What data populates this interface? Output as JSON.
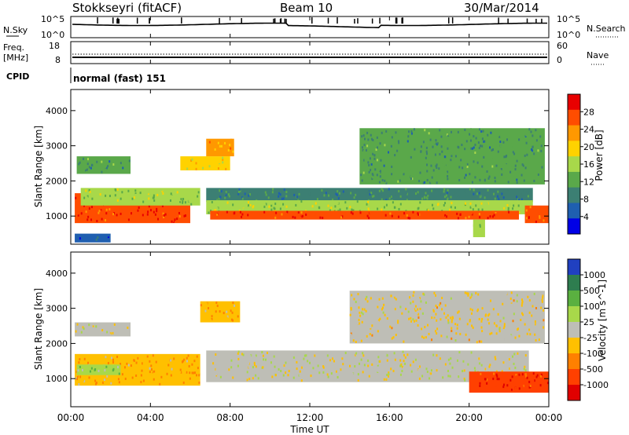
{
  "header": {
    "station": "Stokkseyri (fitACF)",
    "beam": "Beam 10",
    "date": "30/Mar/2014"
  },
  "noise_panel": {
    "left_label": "N.Sky",
    "right_label": "N.Search",
    "left_ticks": [
      "10^5",
      "10^0"
    ],
    "right_ticks": [
      "10^5",
      "10^0"
    ]
  },
  "freq_panel": {
    "left_label_line1": "Freq.",
    "left_label_line2": "[MHz]",
    "left_ticks": [
      "18",
      "8"
    ],
    "right_label": "Nave",
    "right_ticks": [
      "60",
      "0"
    ],
    "cpid_label": "CPID",
    "cpid_value": "normal (fast) 151"
  },
  "chart_data": [
    {
      "type": "heatmap",
      "parameter": "Power",
      "ylabel": "Slant Range [km]",
      "xlabel": "",
      "xlim": [
        0,
        24
      ],
      "ylim": [
        200,
        4600
      ],
      "yticks": [
        "1000",
        "2000",
        "3000",
        "4000"
      ],
      "colorbar": {
        "label": "Power [dB]",
        "ticks": [
          "28",
          "24",
          "20",
          "16",
          "12",
          "8",
          "4"
        ],
        "colors": [
          "#e80000",
          "#ff4d00",
          "#ff9800",
          "#ffd200",
          "#a8d84a",
          "#5aa84a",
          "#3c7f73",
          "#1f5fb0",
          "#0000e6"
        ],
        "range": [
          0,
          30
        ]
      },
      "regions": [
        {
          "t0": 0.2,
          "t1": 6.0,
          "r0": 800,
          "r1": 1650,
          "value": 26
        },
        {
          "t0": 0.5,
          "t1": 6.5,
          "r0": 1300,
          "r1": 1800,
          "value": 14
        },
        {
          "t0": 6.8,
          "t1": 23.2,
          "r0": 1400,
          "r1": 1800,
          "value": 9
        },
        {
          "t0": 6.8,
          "t1": 23.2,
          "r0": 1050,
          "r1": 1450,
          "value": 14
        },
        {
          "t0": 7.0,
          "t1": 22.5,
          "r0": 900,
          "r1": 1150,
          "value": 26
        },
        {
          "t0": 22.8,
          "t1": 24.0,
          "r0": 800,
          "r1": 1300,
          "value": 24
        },
        {
          "t0": 0.3,
          "t1": 3.0,
          "r0": 2200,
          "r1": 2700,
          "value": 10
        },
        {
          "t0": 5.5,
          "t1": 8.0,
          "r0": 2300,
          "r1": 2700,
          "value": 18
        },
        {
          "t0": 6.8,
          "t1": 8.2,
          "r0": 2700,
          "r1": 3200,
          "value": 20
        },
        {
          "t0": 14.5,
          "t1": 23.8,
          "r0": 1900,
          "r1": 3500,
          "value": 10
        },
        {
          "t0": 20.2,
          "t1": 20.8,
          "r0": 400,
          "r1": 900,
          "value": 14
        },
        {
          "t0": 0.2,
          "t1": 2.0,
          "r0": 250,
          "r1": 500,
          "value": 6
        }
      ]
    },
    {
      "type": "heatmap",
      "parameter": "Velocity",
      "ylabel": "Slant Range [km]",
      "xlabel": "Time UT",
      "xlim": [
        0,
        24
      ],
      "ylim": [
        200,
        4600
      ],
      "xticks": [
        "00:00",
        "04:00",
        "08:00",
        "12:00",
        "16:00",
        "20:00",
        "00:00"
      ],
      "yticks": [
        "1000",
        "2000",
        "3000",
        "4000"
      ],
      "colorbar": {
        "label": "Velocity [m s^-1]",
        "ticks": [
          "1000",
          "500",
          "100",
          "25",
          "-25",
          "-100",
          "-500",
          "-1000"
        ],
        "colors": [
          "#2040c0",
          "#2e7d4f",
          "#5ab040",
          "#a8d84a",
          "#bebeb6",
          "#ffc000",
          "#ff8000",
          "#ff4000",
          "#e00000"
        ],
        "range": [
          -1000,
          1000
        ]
      },
      "regions": [
        {
          "t0": 0.2,
          "t1": 6.5,
          "r0": 800,
          "r1": 1700,
          "value": -300
        },
        {
          "t0": 6.8,
          "t1": 23.0,
          "r0": 900,
          "r1": 1800,
          "value": 0
        },
        {
          "t0": 0.2,
          "t1": 3.0,
          "r0": 2200,
          "r1": 2600,
          "value": 0
        },
        {
          "t0": 6.5,
          "t1": 8.5,
          "r0": 2600,
          "r1": 3200,
          "value": -300
        },
        {
          "t0": 20.0,
          "t1": 24.0,
          "r0": 600,
          "r1": 1200,
          "value": -700
        },
        {
          "t0": 14.0,
          "t1": 23.8,
          "r0": 2000,
          "r1": 3500,
          "value": -100
        },
        {
          "t0": 0.3,
          "t1": 2.5,
          "r0": 1100,
          "r1": 1400,
          "value": 300
        }
      ]
    }
  ]
}
